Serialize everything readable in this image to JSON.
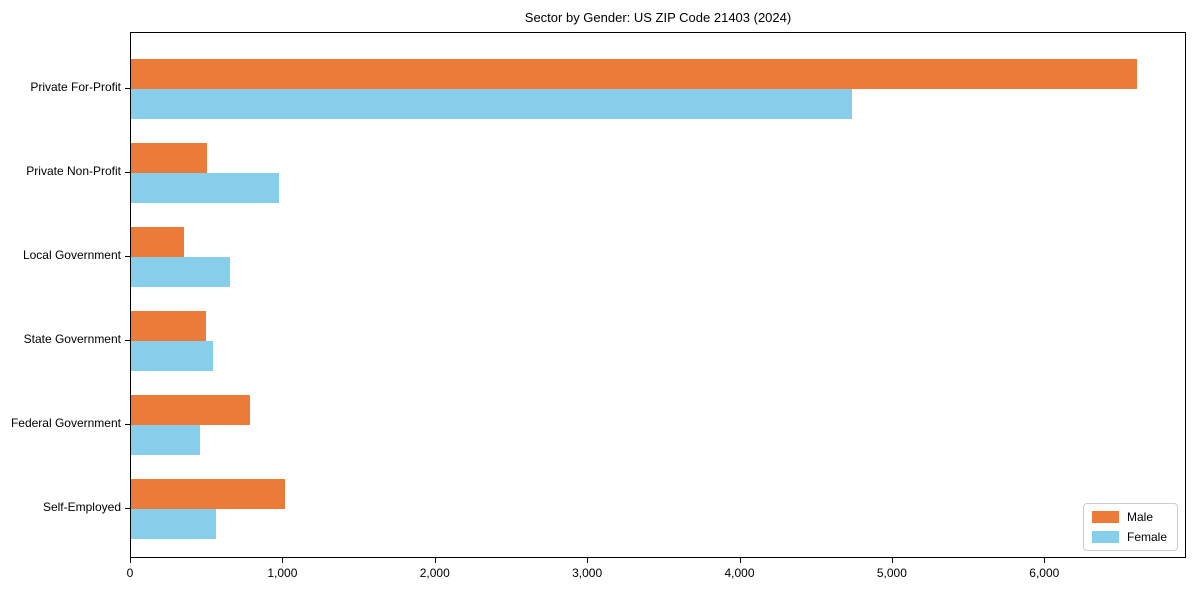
{
  "chart_data": {
    "type": "bar",
    "orientation": "horizontal",
    "title": "Sector by Gender: US ZIP Code 21403 (2024)",
    "xlabel": "",
    "ylabel": "",
    "categories": [
      "Private For-Profit",
      "Private Non-Profit",
      "Local Government",
      "State Government",
      "Federal Government",
      "Self-Employed"
    ],
    "series": [
      {
        "name": "Male",
        "color": "#EC7A39",
        "values": [
          6600,
          500,
          345,
          490,
          780,
          1010
        ]
      },
      {
        "name": "Female",
        "color": "#87CEEB",
        "values": [
          4730,
          970,
          650,
          540,
          450,
          560
        ]
      }
    ],
    "xlim": [
      0,
      6930
    ],
    "x_ticks": [
      0,
      1000,
      2000,
      3000,
      4000,
      5000,
      6000
    ],
    "x_tick_labels": [
      "0",
      "1,000",
      "2,000",
      "3,000",
      "4,000",
      "5,000",
      "6,000"
    ],
    "grid": false,
    "legend_position": "lower right",
    "colors": {
      "male": "#EC7A39",
      "female": "#87CEEB",
      "axis": "#000000",
      "legend_border": "#cccccc",
      "background": "#ffffff"
    }
  }
}
